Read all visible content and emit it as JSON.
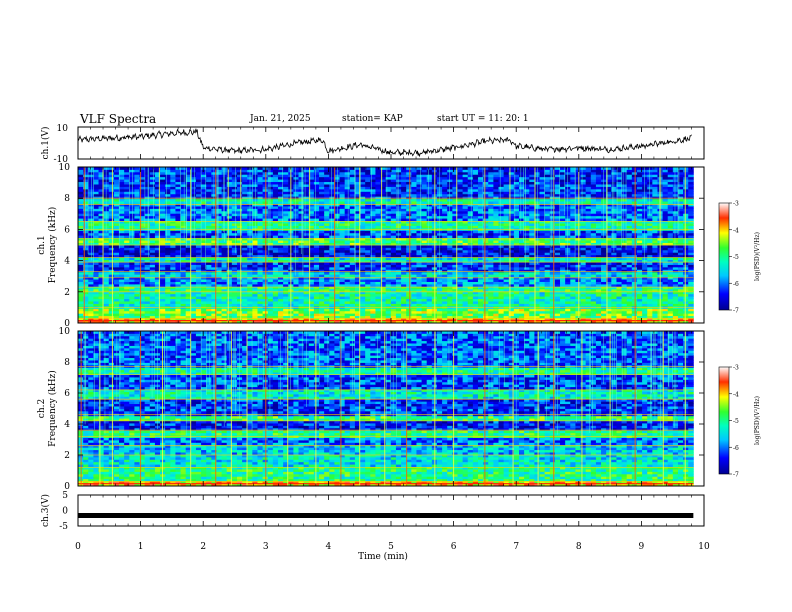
{
  "header": {
    "title": "VLF Spectra",
    "date": "Jan. 21, 2025",
    "station": "station= KAP",
    "start": "start  UT =   11: 20: 1"
  },
  "chart_data": [
    {
      "type": "line",
      "panel": "ch1-timeseries",
      "ylabel": "ch.1(V)",
      "yticks": [
        "10",
        "-10"
      ],
      "ylim": [
        -10,
        10
      ],
      "xlim": [
        0,
        10
      ],
      "trace_color": "#000000",
      "approx_profile": [
        {
          "t": 0.0,
          "v": 2
        },
        {
          "t": 0.5,
          "v": 3
        },
        {
          "t": 1.0,
          "v": 4
        },
        {
          "t": 1.5,
          "v": 6
        },
        {
          "t": 1.9,
          "v": 7
        },
        {
          "t": 2.0,
          "v": -3
        },
        {
          "t": 2.5,
          "v": -5
        },
        {
          "t": 3.0,
          "v": -4
        },
        {
          "t": 3.5,
          "v": 0
        },
        {
          "t": 3.9,
          "v": 2
        },
        {
          "t": 4.0,
          "v": -5
        },
        {
          "t": 4.5,
          "v": -1
        },
        {
          "t": 5.0,
          "v": -6
        },
        {
          "t": 5.5,
          "v": -6
        },
        {
          "t": 6.0,
          "v": -3
        },
        {
          "t": 6.5,
          "v": 1
        },
        {
          "t": 6.9,
          "v": 2
        },
        {
          "t": 7.0,
          "v": -2
        },
        {
          "t": 7.5,
          "v": -4
        },
        {
          "t": 8.0,
          "v": -3
        },
        {
          "t": 8.5,
          "v": -4
        },
        {
          "t": 9.0,
          "v": -2
        },
        {
          "t": 9.5,
          "v": 1
        },
        {
          "t": 9.8,
          "v": 3
        }
      ]
    },
    {
      "type": "heatmap",
      "panel": "ch1-spectrogram",
      "ylabel": "ch.1",
      "ylabel2": "Frequency (kHz)",
      "yticks": [
        "0",
        "2",
        "4",
        "6",
        "8",
        "10"
      ],
      "ylim": [
        0,
        10
      ],
      "xlim": [
        0,
        9.83
      ],
      "colorbar": {
        "label": "log(PSD)(V²/Hz)",
        "range": [
          -7,
          -3
        ],
        "ticks": [
          "-3",
          "-4",
          "-5",
          "-6",
          "-7"
        ]
      },
      "bands": [
        {
          "f0": 0.0,
          "f1": 0.3,
          "level": -4.0
        },
        {
          "f0": 0.3,
          "f1": 1.0,
          "level": -4.6
        },
        {
          "f0": 1.0,
          "f1": 2.0,
          "level": -5.2
        },
        {
          "f0": 2.0,
          "f1": 2.3,
          "level": -5.0
        },
        {
          "f0": 2.3,
          "f1": 2.9,
          "level": -5.9
        },
        {
          "f0": 2.9,
          "f1": 3.3,
          "level": -5.5
        },
        {
          "f0": 3.3,
          "f1": 3.9,
          "level": -6.3
        },
        {
          "f0": 3.9,
          "f1": 4.2,
          "level": -5.3
        },
        {
          "f0": 4.2,
          "f1": 5.0,
          "level": -6.5
        },
        {
          "f0": 5.0,
          "f1": 5.4,
          "level": -4.8
        },
        {
          "f0": 5.4,
          "f1": 6.0,
          "level": -6.2
        },
        {
          "f0": 6.0,
          "f1": 6.5,
          "level": -5.1
        },
        {
          "f0": 6.5,
          "f1": 7.6,
          "level": -6.0
        },
        {
          "f0": 7.6,
          "f1": 8.0,
          "level": -5.2
        },
        {
          "f0": 8.0,
          "f1": 10.0,
          "level": -6.3
        }
      ],
      "sferic_times_min": [
        0.1,
        0.4,
        0.55,
        1.0,
        1.3,
        1.8,
        2.2,
        2.4,
        2.6,
        3.0,
        3.4,
        3.7,
        4.1,
        4.5,
        4.85,
        5.3,
        5.7,
        6.05,
        6.5,
        6.9,
        7.3,
        7.6,
        8.0,
        8.45,
        8.9,
        9.3,
        9.7
      ]
    },
    {
      "type": "heatmap",
      "panel": "ch2-spectrogram",
      "ylabel": "ch.2",
      "ylabel2": "Frequency (kHz)",
      "yticks": [
        "0",
        "2",
        "4",
        "6",
        "8",
        "10"
      ],
      "ylim": [
        0,
        10
      ],
      "xlim": [
        0,
        9.83
      ],
      "colorbar": {
        "label": "log(PSD)(V²/Hz)",
        "range": [
          -7,
          -3
        ],
        "ticks": [
          "-3",
          "-4",
          "-5",
          "-6",
          "-7"
        ]
      },
      "bands": [
        {
          "f0": 0.0,
          "f1": 0.3,
          "level": -4.0
        },
        {
          "f0": 0.3,
          "f1": 1.2,
          "level": -5.0
        },
        {
          "f0": 1.2,
          "f1": 2.0,
          "level": -5.4
        },
        {
          "f0": 2.0,
          "f1": 2.6,
          "level": -5.6
        },
        {
          "f0": 2.6,
          "f1": 3.2,
          "level": -6.0
        },
        {
          "f0": 3.2,
          "f1": 3.6,
          "level": -5.0
        },
        {
          "f0": 3.6,
          "f1": 4.2,
          "level": -6.4
        },
        {
          "f0": 4.2,
          "f1": 4.6,
          "level": -4.9
        },
        {
          "f0": 4.6,
          "f1": 5.6,
          "level": -6.3
        },
        {
          "f0": 5.6,
          "f1": 6.2,
          "level": -5.3
        },
        {
          "f0": 6.2,
          "f1": 7.2,
          "level": -6.2
        },
        {
          "f0": 7.2,
          "f1": 7.7,
          "level": -5.1
        },
        {
          "f0": 7.7,
          "f1": 10.0,
          "level": -6.1
        }
      ],
      "sferic_times_min": [
        0.05,
        0.35,
        0.55,
        1.0,
        1.35,
        1.8,
        2.2,
        2.45,
        2.7,
        3.0,
        3.35,
        3.8,
        4.2,
        4.5,
        4.9,
        5.25,
        5.7,
        6.0,
        6.5,
        6.95,
        7.35,
        7.6,
        8.05,
        8.5,
        8.9,
        9.35,
        9.7
      ]
    },
    {
      "type": "line",
      "panel": "ch3-timeseries",
      "ylabel": "ch.3(V)",
      "yticks": [
        "5",
        "0",
        "-5"
      ],
      "ylim": [
        -5,
        5
      ],
      "xlim": [
        0,
        10
      ],
      "trace_color": "#000000",
      "approx_profile": [
        {
          "t": 0.0,
          "v": -1.6
        },
        {
          "t": 9.83,
          "v": -1.6
        }
      ]
    }
  ],
  "xaxis": {
    "label": "Time (min)",
    "ticks": [
      "0",
      "1",
      "2",
      "3",
      "4",
      "5",
      "6",
      "7",
      "8",
      "9",
      "10"
    ],
    "range": [
      0,
      10
    ]
  }
}
